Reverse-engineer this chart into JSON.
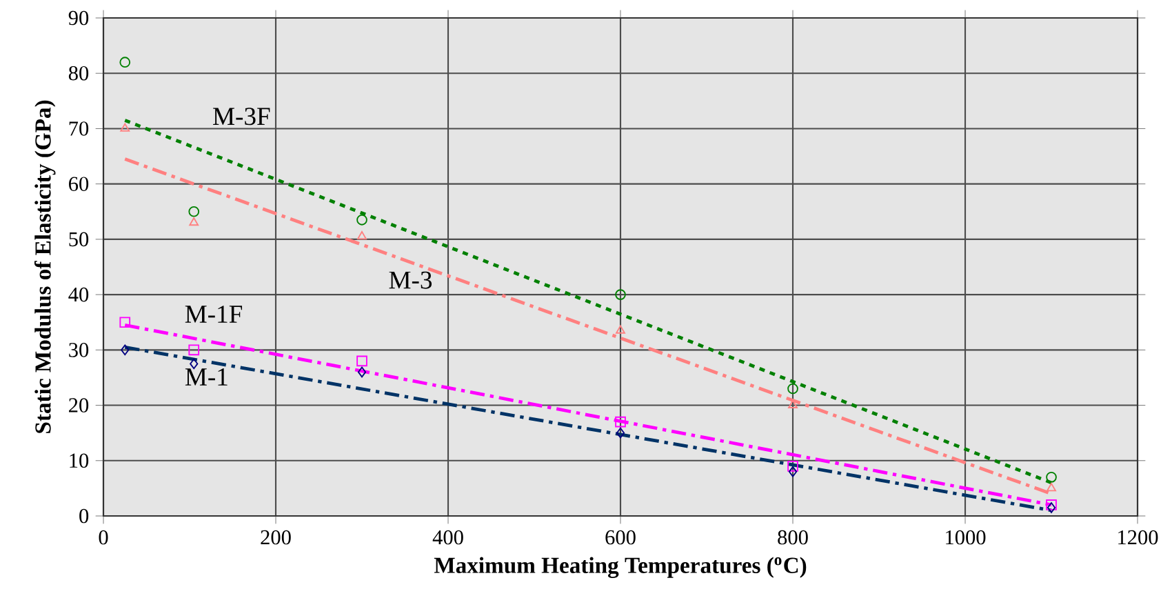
{
  "chart_data": {
    "type": "scatter",
    "xlabel": "Maximum Heating Temperatures ($^{o}$C)",
    "ylabel": "Static Modulus of Elasticity (GPa)",
    "xlim": [
      0,
      1200
    ],
    "xticks": [
      0,
      200,
      400,
      600,
      800,
      1000,
      1200
    ],
    "ylim": [
      0,
      90
    ],
    "yticks": [
      0,
      10,
      20,
      30,
      40,
      50,
      60,
      70,
      80,
      90
    ],
    "grid": true,
    "series": [
      {
        "type": "line",
        "name": "M-3F",
        "color": "#008000",
        "line_style": "dotted",
        "marker": "none",
        "x": [
          25,
          1100
        ],
        "values": [
          71.5,
          6
        ]
      },
      {
        "type": "line",
        "name": "M-3",
        "color": "#ff8080",
        "line_style": "dashed",
        "marker": "none",
        "x": [
          25,
          1100
        ],
        "values": [
          64.5,
          4
        ]
      },
      {
        "type": "line",
        "name": "M-1F",
        "color": "#ff00ff",
        "line_style": "dashed",
        "marker": "none",
        "x": [
          25,
          1100
        ],
        "values": [
          34.5,
          2
        ]
      },
      {
        "type": "line",
        "name": "M-1",
        "color": "#003366",
        "line_style": "dashed",
        "marker": "none",
        "x": [
          25,
          1100
        ],
        "values": [
          30.5,
          1
        ]
      },
      {
        "color": "#008000",
        "marker": "circle",
        "x": [
          25,
          105,
          300,
          600,
          800,
          1100
        ],
        "values": [
          82,
          55,
          53.5,
          40,
          23,
          7
        ]
      },
      {
        "color": "#ff8080",
        "marker": "triangle",
        "x": [
          25,
          105,
          300,
          600,
          800,
          1100
        ],
        "values": [
          70,
          53,
          50.5,
          33.5,
          20,
          5
        ]
      },
      {
        "color": "#ff00ff",
        "marker": "square",
        "x": [
          25,
          105,
          300,
          600,
          800,
          1100
        ],
        "values": [
          35,
          30,
          28,
          17,
          9,
          2
        ]
      },
      {
        "color": "#000080",
        "marker": "diamond",
        "x": [
          25,
          105,
          300,
          600,
          800,
          1100
        ],
        "values": [
          30,
          27.5,
          26,
          15,
          8,
          1.5
        ]
      }
    ]
  }
}
